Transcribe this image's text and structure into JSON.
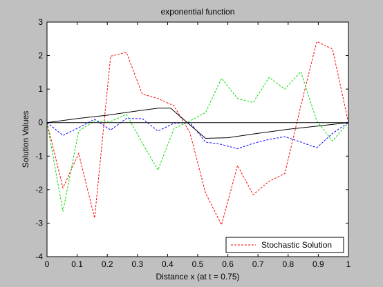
{
  "chart_data": {
    "type": "line",
    "title": "exponential function",
    "xlabel": "Distance x (at t = 0.75)",
    "ylabel": "Solution Values",
    "xlim": [
      0,
      1
    ],
    "ylim": [
      -4,
      3
    ],
    "xticks": [
      "0",
      "0.1",
      "0.2",
      "0.3",
      "0.4",
      "0.5",
      "0.6",
      "0.7",
      "0.8",
      "0.9",
      "1"
    ],
    "yticks": [
      "-4",
      "-3",
      "-2",
      "-1",
      "0",
      "1",
      "2",
      "3"
    ],
    "grid": false,
    "legend_position": "bottom-right",
    "legend": [
      "Stochastic Solution"
    ],
    "series": [
      {
        "name": "Stochastic Solution",
        "color": "#ff0000",
        "style": "dashed",
        "x": [
          0,
          0.053,
          0.105,
          0.158,
          0.211,
          0.263,
          0.316,
          0.368,
          0.421,
          0.474,
          0.526,
          0.579,
          0.632,
          0.684,
          0.737,
          0.789,
          0.842,
          0.895,
          0.947,
          1.0
        ],
        "y": [
          0,
          -1.95,
          -0.92,
          -2.85,
          1.98,
          2.1,
          0.85,
          0.72,
          0.5,
          -0.3,
          -2.1,
          -3.05,
          -1.28,
          -2.15,
          -1.75,
          -1.52,
          0.5,
          2.42,
          2.2,
          0
        ]
      },
      {
        "color": "#00dd00",
        "style": "dashed",
        "x": [
          0,
          0.053,
          0.105,
          0.158,
          0.211,
          0.263,
          0.316,
          0.368,
          0.421,
          0.474,
          0.526,
          0.579,
          0.632,
          0.684,
          0.737,
          0.789,
          0.842,
          0.895,
          0.947,
          1.0
        ],
        "y": [
          0,
          -2.65,
          -0.25,
          0.05,
          0.03,
          0.25,
          -0.6,
          -1.42,
          -0.18,
          0.05,
          0.3,
          1.32,
          0.72,
          0.6,
          1.35,
          1.0,
          1.52,
          0.05,
          -0.55,
          0
        ]
      },
      {
        "color": "#0000ff",
        "style": "dashed",
        "x": [
          0,
          0.053,
          0.105,
          0.158,
          0.211,
          0.263,
          0.316,
          0.368,
          0.421,
          0.474,
          0.526,
          0.579,
          0.632,
          0.684,
          0.737,
          0.789,
          0.842,
          0.895,
          0.947,
          1.0
        ],
        "y": [
          0,
          -0.38,
          -0.15,
          0.1,
          -0.22,
          0.12,
          0.12,
          -0.25,
          -0.02,
          0.0,
          -0.58,
          -0.65,
          -0.78,
          -0.62,
          -0.5,
          -0.42,
          -0.58,
          -0.75,
          -0.32,
          0
        ]
      },
      {
        "color": "#000000",
        "style": "solid",
        "x": [
          0,
          0.1,
          0.2,
          0.3,
          0.37,
          0.41,
          0.526,
          0.6,
          0.7,
          0.8,
          0.9,
          1.0
        ],
        "y": [
          0,
          0.12,
          0.22,
          0.35,
          0.43,
          0.43,
          -0.47,
          -0.45,
          -0.32,
          -0.2,
          -0.1,
          0
        ]
      },
      {
        "color": "#000000",
        "style": "solid",
        "x": [
          0,
          1
        ],
        "y": [
          0,
          0
        ]
      }
    ]
  }
}
